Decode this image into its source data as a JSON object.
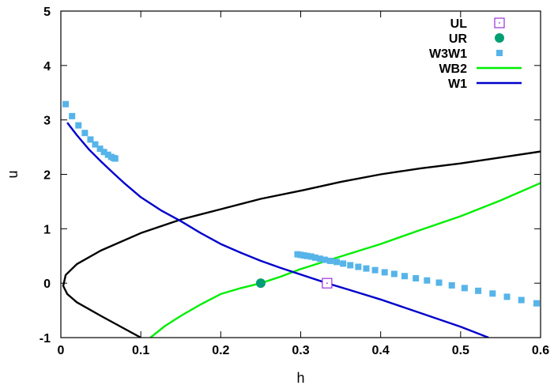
{
  "chart_data": {
    "type": "line",
    "xlabel": "h",
    "ylabel": "u",
    "xlim": [
      0,
      0.6
    ],
    "ylim": [
      -1,
      5
    ],
    "x_ticks": [
      "0",
      "0.1",
      "0.2",
      "0.3",
      "0.4",
      "0.5",
      "0.6"
    ],
    "y_ticks": [
      "-1",
      "0",
      "1",
      "2",
      "3",
      "4",
      "5"
    ],
    "grid": false,
    "legend_position": "top-right",
    "series": [
      {
        "name": "UL",
        "style": "open-square",
        "color": "#9b30d8",
        "points": [
          [
            0.333,
            0.0
          ]
        ]
      },
      {
        "name": "UR",
        "style": "filled-circle",
        "color": "#009e73",
        "points": [
          [
            0.25,
            0.0
          ]
        ]
      },
      {
        "name": "W3W1",
        "style": "filled-square",
        "color": "#56b4e9",
        "points": [
          [
            0.006,
            3.29
          ],
          [
            0.014,
            3.07
          ],
          [
            0.022,
            2.9
          ],
          [
            0.03,
            2.76
          ],
          [
            0.037,
            2.64
          ],
          [
            0.043,
            2.55
          ],
          [
            0.049,
            2.47
          ],
          [
            0.054,
            2.41
          ],
          [
            0.059,
            2.36
          ],
          [
            0.063,
            2.32
          ],
          [
            0.066,
            2.3
          ],
          [
            0.068,
            2.29
          ],
          [
            0.296,
            0.53
          ],
          [
            0.3,
            0.52
          ],
          [
            0.304,
            0.51
          ],
          [
            0.308,
            0.5
          ],
          [
            0.313,
            0.49
          ],
          [
            0.318,
            0.47
          ],
          [
            0.324,
            0.45
          ],
          [
            0.33,
            0.43
          ],
          [
            0.337,
            0.41
          ],
          [
            0.345,
            0.39
          ],
          [
            0.353,
            0.36
          ],
          [
            0.362,
            0.33
          ],
          [
            0.372,
            0.3
          ],
          [
            0.382,
            0.27
          ],
          [
            0.393,
            0.24
          ],
          [
            0.405,
            0.2
          ],
          [
            0.417,
            0.17
          ],
          [
            0.43,
            0.13
          ],
          [
            0.444,
            0.09
          ],
          [
            0.458,
            0.05
          ],
          [
            0.473,
            0.01
          ],
          [
            0.489,
            -0.04
          ],
          [
            0.505,
            -0.09
          ],
          [
            0.522,
            -0.14
          ],
          [
            0.54,
            -0.19
          ],
          [
            0.558,
            -0.25
          ],
          [
            0.576,
            -0.31
          ],
          [
            0.595,
            -0.37
          ]
        ]
      },
      {
        "name": "WB2",
        "style": "line",
        "color": "#00ee00",
        "points": [
          [
            0.112,
            -1.0
          ],
          [
            0.13,
            -0.79
          ],
          [
            0.15,
            -0.6
          ],
          [
            0.175,
            -0.39
          ],
          [
            0.2,
            -0.2
          ],
          [
            0.225,
            -0.09
          ],
          [
            0.25,
            0.0
          ],
          [
            0.275,
            0.12
          ],
          [
            0.3,
            0.26
          ],
          [
            0.35,
            0.49
          ],
          [
            0.4,
            0.72
          ],
          [
            0.45,
            0.98
          ],
          [
            0.5,
            1.23
          ],
          [
            0.55,
            1.52
          ],
          [
            0.6,
            1.84
          ]
        ]
      },
      {
        "name": "W1",
        "style": "line",
        "color": "#0000cc",
        "points": [
          [
            0.008,
            2.95
          ],
          [
            0.02,
            2.72
          ],
          [
            0.035,
            2.46
          ],
          [
            0.05,
            2.24
          ],
          [
            0.065,
            2.03
          ],
          [
            0.08,
            1.83
          ],
          [
            0.1,
            1.58
          ],
          [
            0.125,
            1.34
          ],
          [
            0.15,
            1.14
          ],
          [
            0.175,
            0.92
          ],
          [
            0.2,
            0.72
          ],
          [
            0.225,
            0.56
          ],
          [
            0.25,
            0.41
          ],
          [
            0.275,
            0.28
          ],
          [
            0.3,
            0.16
          ],
          [
            0.333,
            0.0
          ],
          [
            0.36,
            -0.12
          ],
          [
            0.4,
            -0.3
          ],
          [
            0.45,
            -0.55
          ],
          [
            0.5,
            -0.8
          ],
          [
            0.535,
            -1.0
          ]
        ]
      },
      {
        "style": "line",
        "color": "#000000",
        "points": [
          [
            0.1,
            -1.0
          ],
          [
            0.05,
            -0.6
          ],
          [
            0.02,
            -0.35
          ],
          [
            0.008,
            -0.2
          ],
          [
            0.003,
            -0.05
          ],
          [
            0.006,
            0.15
          ],
          [
            0.02,
            0.35
          ],
          [
            0.05,
            0.6
          ],
          [
            0.1,
            0.92
          ],
          [
            0.15,
            1.17
          ],
          [
            0.2,
            1.36
          ],
          [
            0.25,
            1.55
          ],
          [
            0.3,
            1.7
          ],
          [
            0.35,
            1.86
          ],
          [
            0.4,
            2.0
          ],
          [
            0.45,
            2.11
          ],
          [
            0.5,
            2.2
          ],
          [
            0.55,
            2.31
          ],
          [
            0.6,
            2.42
          ]
        ]
      }
    ]
  }
}
